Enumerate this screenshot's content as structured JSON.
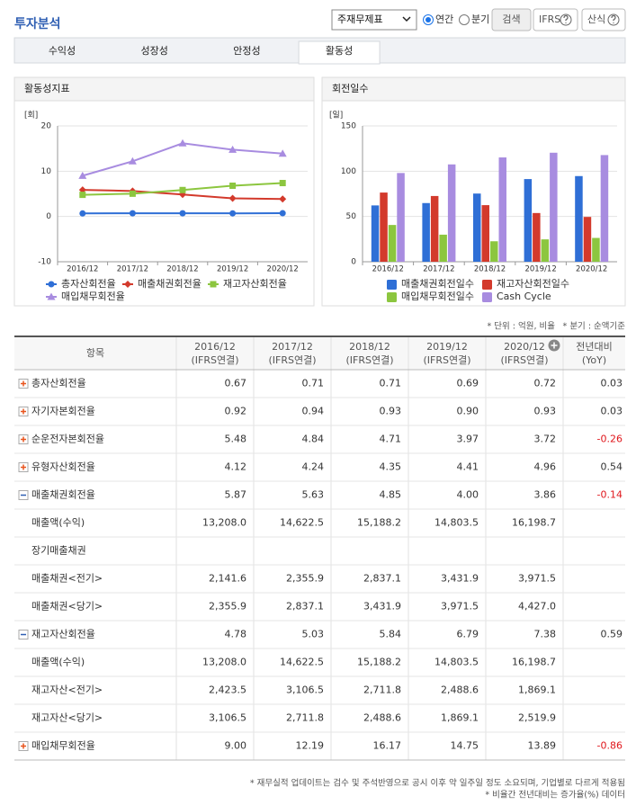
{
  "header": {
    "title": "투자분석"
  },
  "controls": {
    "select": "주재무제표",
    "radios": [
      "연간",
      "분기"
    ],
    "buttons": [
      "검색",
      "IFRS",
      "산식"
    ]
  },
  "tabs": [
    {
      "label": "수익성"
    },
    {
      "label": "성장성"
    },
    {
      "label": "안정성"
    },
    {
      "label": "활동성",
      "active": true
    }
  ],
  "chart_data": [
    {
      "type": "line",
      "title": "활동성지표",
      "unit": "[회]",
      "categories": [
        "2016/12",
        "2017/12",
        "2018/12",
        "2019/12",
        "2020/12"
      ],
      "ylim": [
        -10,
        20
      ],
      "yticks": [
        -10,
        0,
        10,
        20
      ],
      "grid": true,
      "series": [
        {
          "name": "총자산회전율",
          "color": "#2f6fd6",
          "marker": "circle",
          "values": [
            0.67,
            0.71,
            0.71,
            0.69,
            0.72
          ]
        },
        {
          "name": "매출채권회전율",
          "color": "#d33a2c",
          "marker": "diamond",
          "values": [
            5.87,
            5.63,
            4.85,
            4.0,
            3.86
          ]
        },
        {
          "name": "재고자산회전율",
          "color": "#8cc63f",
          "marker": "square",
          "values": [
            4.78,
            5.03,
            5.84,
            6.79,
            7.38
          ]
        },
        {
          "name": "매입채무회전율",
          "color": "#a88ce0",
          "marker": "triangle",
          "values": [
            9.0,
            12.19,
            16.17,
            14.75,
            13.89
          ]
        }
      ]
    },
    {
      "type": "bar",
      "title": "회전일수",
      "unit": "[일]",
      "categories": [
        "2016/12",
        "2017/12",
        "2018/12",
        "2019/12",
        "2020/12"
      ],
      "ylim": [
        0,
        150
      ],
      "yticks": [
        0,
        50,
        100,
        150
      ],
      "grid": true,
      "series": [
        {
          "name": "매출채권회전일수",
          "color": "#2f6fd6",
          "values": [
            62.2,
            64.8,
            75.3,
            91.3,
            94.6
          ]
        },
        {
          "name": "재고자산회전일수",
          "color": "#d33a2c",
          "values": [
            76.4,
            72.6,
            62.5,
            53.8,
            49.5
          ]
        },
        {
          "name": "매입채무회전일수",
          "color": "#8cc63f",
          "values": [
            40.6,
            29.9,
            22.6,
            24.7,
            26.3
          ]
        },
        {
          "name": "Cash Cycle",
          "color": "#a88ce0",
          "values": [
            98.0,
            107.5,
            115.2,
            120.4,
            117.8
          ]
        }
      ]
    }
  ],
  "notes": [
    "* 단위 : 억원, 비율",
    "* 분기 : 순액기준"
  ],
  "table": {
    "columns": [
      {
        "label": "항목"
      },
      {
        "label": "2016/12",
        "sub": "(IFRS연결)"
      },
      {
        "label": "2017/12",
        "sub": "(IFRS연결)"
      },
      {
        "label": "2018/12",
        "sub": "(IFRS연결)"
      },
      {
        "label": "2019/12",
        "sub": "(IFRS연결)"
      },
      {
        "label": "2020/12",
        "sub": "(IFRS연결)"
      },
      {
        "label": "전년대비",
        "sub": "(YoY)"
      }
    ],
    "rows": [
      {
        "expand": "plus",
        "cells": [
          "총자산회전율",
          "0.67",
          "0.71",
          "0.71",
          "0.69",
          "0.72",
          "0.03"
        ]
      },
      {
        "expand": "plus",
        "cells": [
          "자기자본회전율",
          "0.92",
          "0.94",
          "0.93",
          "0.90",
          "0.93",
          "0.03"
        ]
      },
      {
        "expand": "plus",
        "cells": [
          "순운전자본회전율",
          "5.48",
          "4.84",
          "4.71",
          "3.97",
          "3.72",
          "-0.26"
        ]
      },
      {
        "expand": "plus",
        "cells": [
          "유형자산회전율",
          "4.12",
          "4.24",
          "4.35",
          "4.41",
          "4.96",
          "0.54"
        ]
      },
      {
        "expand": "minus",
        "cells": [
          "매출채권회전율",
          "5.87",
          "5.63",
          "4.85",
          "4.00",
          "3.86",
          "-0.14"
        ]
      },
      {
        "cells": [
          "매출액(수익)",
          "13,208.0",
          "14,622.5",
          "15,188.2",
          "14,803.5",
          "16,198.7",
          null
        ]
      },
      {
        "cells": [
          "장기매출채권",
          null,
          null,
          null,
          null,
          null,
          null
        ]
      },
      {
        "cells": [
          "매출채권<전기>",
          "2,141.6",
          "2,355.9",
          "2,837.1",
          "3,431.9",
          "3,971.5",
          null
        ]
      },
      {
        "cells": [
          "매출채권<당기>",
          "2,355.9",
          "2,837.1",
          "3,431.9",
          "3,971.5",
          "4,427.0",
          null
        ]
      },
      {
        "expand": "minus",
        "cells": [
          "재고자산회전율",
          "4.78",
          "5.03",
          "5.84",
          "6.79",
          "7.38",
          "0.59"
        ]
      },
      {
        "cells": [
          "매출액(수익)",
          "13,208.0",
          "14,622.5",
          "15,188.2",
          "14,803.5",
          "16,198.7",
          null
        ]
      },
      {
        "cells": [
          "재고자산<전기>",
          "2,423.5",
          "3,106.5",
          "2,711.8",
          "2,488.6",
          "1,869.1",
          null
        ]
      },
      {
        "cells": [
          "재고자산<당기>",
          "3,106.5",
          "2,711.8",
          "2,488.6",
          "1,869.1",
          "2,519.9",
          null
        ]
      },
      {
        "expand": "plus",
        "cells": [
          "매입채무회전율",
          "9.00",
          "12.19",
          "16.17",
          "14.75",
          "13.89",
          "-0.86"
        ]
      }
    ]
  },
  "footnotes": [
    "* 재무실적 업데이트는 검수 및 주석반영으로 공시 이후 약 일주일 정도 소요되며, 기업별로 다르게 적용됨",
    "* 비율간 전년대비는 증가율(%) 데이터"
  ]
}
